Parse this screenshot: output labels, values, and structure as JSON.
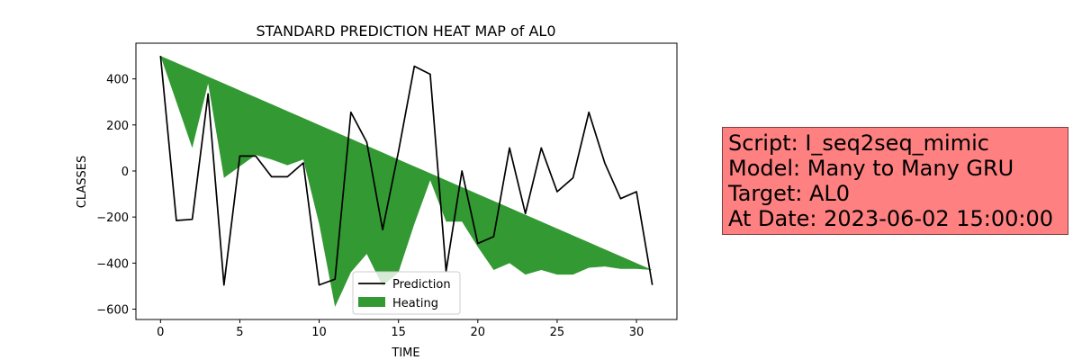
{
  "chart_data": {
    "type": "line",
    "title": "STANDARD PREDICTION HEAT MAP of AL0",
    "xlabel": "TIME",
    "ylabel": "CLASSES",
    "xlim": [
      -1.55,
      32.55
    ],
    "ylim": [
      -645,
      555
    ],
    "xticks": [
      0,
      5,
      10,
      15,
      20,
      25,
      30
    ],
    "yticks": [
      -600,
      -400,
      -200,
      0,
      200,
      400
    ],
    "legend_position": "bottom-center",
    "series": [
      {
        "name": "Prediction",
        "kind": "line",
        "color": "#000000",
        "x": [
          0,
          1,
          2,
          3,
          4,
          5,
          6,
          7,
          8,
          9,
          10,
          11,
          12,
          13,
          14,
          15,
          16,
          17,
          18,
          19,
          20,
          21,
          22,
          23,
          24,
          25,
          26,
          27,
          28,
          29,
          30,
          31
        ],
        "y": [
          500,
          -215,
          -210,
          335,
          -495,
          65,
          65,
          -25,
          -25,
          35,
          -495,
          -470,
          255,
          125,
          -255,
          85,
          455,
          420,
          -435,
          0,
          -315,
          -285,
          100,
          -185,
          100,
          -90,
          -30,
          255,
          35,
          -120,
          -90,
          -495
        ]
      },
      {
        "name": "Heating",
        "kind": "fill_between",
        "color": "#339933",
        "x": [
          0,
          1,
          2,
          3,
          4,
          5,
          6,
          7,
          8,
          9,
          10,
          11,
          12,
          13,
          14,
          15,
          16,
          17,
          18,
          19,
          20,
          21,
          22,
          23,
          24,
          25,
          26,
          27,
          28,
          29,
          30,
          31
        ],
        "upper": [
          500,
          470,
          440,
          410,
          380,
          350,
          320,
          290,
          260,
          230,
          200,
          170,
          140,
          110,
          80,
          50,
          20,
          -10,
          -40,
          -70,
          -100,
          -130,
          -160,
          -190,
          -220,
          -250,
          -280,
          -310,
          -340,
          -370,
          -400,
          -430
        ],
        "lower": [
          500,
          300,
          100,
          380,
          -30,
          20,
          70,
          50,
          25,
          50,
          -230,
          -590,
          -440,
          -360,
          -500,
          -440,
          -230,
          -40,
          -220,
          -220,
          -330,
          -430,
          -400,
          -450,
          -430,
          -450,
          -450,
          -420,
          -415,
          -425,
          -425,
          -430
        ]
      }
    ]
  },
  "info_box": {
    "lines": [
      "Script: I_seq2seq_mimic",
      "Model: Many to Many GRU",
      "Target: AL0",
      "At Date: 2023-06-02 15:00:00"
    ],
    "background": "#ff8080"
  }
}
